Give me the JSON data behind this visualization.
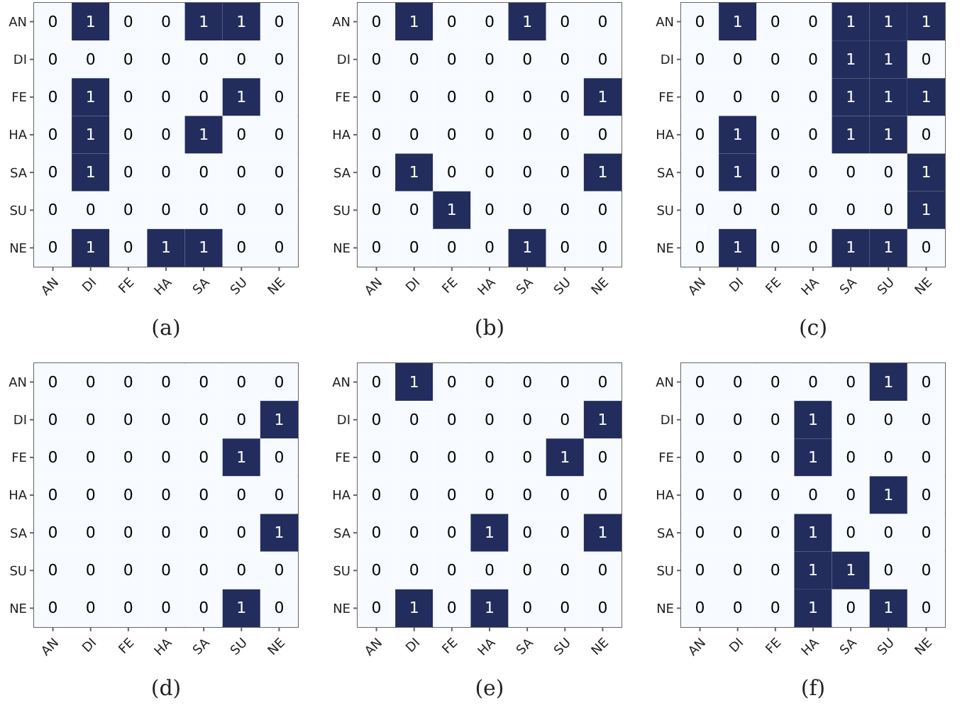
{
  "chart_data": [
    {
      "type": "heatmap",
      "title": "(a)",
      "categories": [
        "AN",
        "DI",
        "FE",
        "HA",
        "SA",
        "SU",
        "NE"
      ],
      "y_categories": [
        "AN",
        "DI",
        "FE",
        "HA",
        "SA",
        "SU",
        "NE"
      ],
      "colors": [
        "#f7fbff",
        "#222d5d"
      ],
      "data_labels": true,
      "cells": [
        [
          0,
          1,
          0,
          0,
          1,
          1,
          0
        ],
        [
          0,
          0,
          0,
          0,
          0,
          0,
          0
        ],
        [
          0,
          1,
          0,
          0,
          0,
          1,
          0
        ],
        [
          0,
          1,
          0,
          0,
          1,
          0,
          0
        ],
        [
          0,
          1,
          0,
          0,
          0,
          0,
          0
        ],
        [
          0,
          0,
          0,
          0,
          0,
          0,
          0
        ],
        [
          0,
          1,
          0,
          1,
          1,
          0,
          0
        ]
      ]
    },
    {
      "type": "heatmap",
      "title": "(b)",
      "categories": [
        "AN",
        "DI",
        "FE",
        "HA",
        "SA",
        "SU",
        "NE"
      ],
      "y_categories": [
        "AN",
        "DI",
        "FE",
        "HA",
        "SA",
        "SU",
        "NE"
      ],
      "colors": [
        "#f7fbff",
        "#222d5d"
      ],
      "data_labels": true,
      "cells": [
        [
          0,
          1,
          0,
          0,
          1,
          0,
          0
        ],
        [
          0,
          0,
          0,
          0,
          0,
          0,
          0
        ],
        [
          0,
          0,
          0,
          0,
          0,
          0,
          1
        ],
        [
          0,
          0,
          0,
          0,
          0,
          0,
          0
        ],
        [
          0,
          1,
          0,
          0,
          0,
          0,
          1
        ],
        [
          0,
          0,
          1,
          0,
          0,
          0,
          0
        ],
        [
          0,
          0,
          0,
          0,
          1,
          0,
          0
        ]
      ]
    },
    {
      "type": "heatmap",
      "title": "(c)",
      "categories": [
        "AN",
        "DI",
        "FE",
        "HA",
        "SA",
        "SU",
        "NE"
      ],
      "y_categories": [
        "AN",
        "DI",
        "FE",
        "HA",
        "SA",
        "SU",
        "NE"
      ],
      "colors": [
        "#f7fbff",
        "#222d5d"
      ],
      "data_labels": true,
      "cells": [
        [
          0,
          1,
          0,
          0,
          1,
          1,
          1
        ],
        [
          0,
          0,
          0,
          0,
          1,
          1,
          0
        ],
        [
          0,
          0,
          0,
          0,
          1,
          1,
          1
        ],
        [
          0,
          1,
          0,
          0,
          1,
          1,
          0
        ],
        [
          0,
          1,
          0,
          0,
          0,
          0,
          1
        ],
        [
          0,
          0,
          0,
          0,
          0,
          0,
          1
        ],
        [
          0,
          1,
          0,
          0,
          1,
          1,
          0
        ]
      ]
    },
    {
      "type": "heatmap",
      "title": "(d)",
      "categories": [
        "AN",
        "DI",
        "FE",
        "HA",
        "SA",
        "SU",
        "NE"
      ],
      "y_categories": [
        "AN",
        "DI",
        "FE",
        "HA",
        "SA",
        "SU",
        "NE"
      ],
      "colors": [
        "#f7fbff",
        "#222d5d"
      ],
      "data_labels": true,
      "cells": [
        [
          0,
          0,
          0,
          0,
          0,
          0,
          0
        ],
        [
          0,
          0,
          0,
          0,
          0,
          0,
          1
        ],
        [
          0,
          0,
          0,
          0,
          0,
          1,
          0
        ],
        [
          0,
          0,
          0,
          0,
          0,
          0,
          0
        ],
        [
          0,
          0,
          0,
          0,
          0,
          0,
          1
        ],
        [
          0,
          0,
          0,
          0,
          0,
          0,
          0
        ],
        [
          0,
          0,
          0,
          0,
          0,
          1,
          0
        ]
      ]
    },
    {
      "type": "heatmap",
      "title": "(e)",
      "categories": [
        "AN",
        "DI",
        "FE",
        "HA",
        "SA",
        "SU",
        "NE"
      ],
      "y_categories": [
        "AN",
        "DI",
        "FE",
        "HA",
        "SA",
        "SU",
        "NE"
      ],
      "colors": [
        "#f7fbff",
        "#222d5d"
      ],
      "data_labels": true,
      "cells": [
        [
          0,
          1,
          0,
          0,
          0,
          0,
          0
        ],
        [
          0,
          0,
          0,
          0,
          0,
          0,
          1
        ],
        [
          0,
          0,
          0,
          0,
          0,
          1,
          0
        ],
        [
          0,
          0,
          0,
          0,
          0,
          0,
          0
        ],
        [
          0,
          0,
          0,
          1,
          0,
          0,
          1
        ],
        [
          0,
          0,
          0,
          0,
          0,
          0,
          0
        ],
        [
          0,
          1,
          0,
          1,
          0,
          0,
          0
        ]
      ]
    },
    {
      "type": "heatmap",
      "title": "(f)",
      "categories": [
        "AN",
        "DI",
        "FE",
        "HA",
        "SA",
        "SU",
        "NE"
      ],
      "y_categories": [
        "AN",
        "DI",
        "FE",
        "HA",
        "SA",
        "SU",
        "NE"
      ],
      "colors": [
        "#f7fbff",
        "#222d5d"
      ],
      "data_labels": true,
      "cells": [
        [
          0,
          0,
          0,
          0,
          0,
          1,
          0
        ],
        [
          0,
          0,
          0,
          1,
          0,
          0,
          0
        ],
        [
          0,
          0,
          0,
          1,
          0,
          0,
          0
        ],
        [
          0,
          0,
          0,
          0,
          0,
          1,
          0
        ],
        [
          0,
          0,
          0,
          1,
          0,
          0,
          0
        ],
        [
          0,
          0,
          0,
          1,
          1,
          0,
          0
        ],
        [
          0,
          0,
          0,
          1,
          0,
          1,
          0
        ]
      ]
    }
  ]
}
